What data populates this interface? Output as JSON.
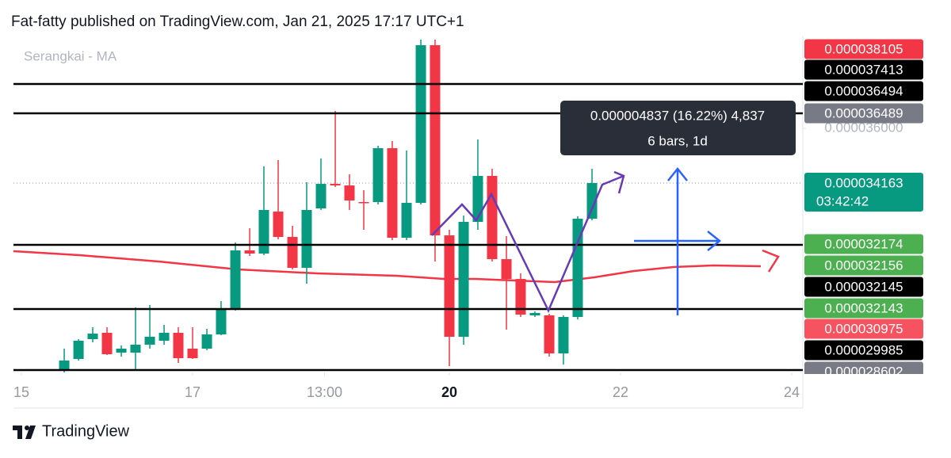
{
  "header": "Fat-fatty published on TradingView.com, Jan 21, 2025 17:17 UTC+1",
  "footer": "TradingView",
  "chart_data": {
    "type": "candlestick",
    "legend": "Serangkai - MA",
    "up_color": "#089981",
    "down_color": "#f23645",
    "x": [
      15.5,
      15.667,
      15.833,
      16,
      16.167,
      16.333,
      16.5,
      16.667,
      16.833,
      17,
      17.167,
      17.333,
      17.5,
      17.667,
      17.833,
      18,
      18.167,
      18.333,
      18.5,
      18.667,
      18.833,
      19,
      19.167,
      19.333,
      19.5,
      19.667,
      19.833,
      20,
      20.167,
      20.333,
      20.5,
      20.667,
      20.833,
      21,
      21.167,
      21.333,
      21.5,
      21.667
    ],
    "open": [
      2.7859e-05,
      2.8258e-05,
      2.8923e-05,
      2.9136e-05,
      2.8471e-05,
      2.8471e-05,
      2.8737e-05,
      2.887e-05,
      2.9136e-05,
      2.8604e-05,
      2.8604e-05,
      2.9082e-05,
      2.9934e-05,
      3.1902e-05,
      3.1796e-05,
      3.3205e-05,
      3.2354e-05,
      3.1317e-05,
      3.3312e-05,
      3.4136e-05,
      3.4083e-05,
      3.3525e-05,
      3.3525e-05,
      3.5333e-05,
      3.2328e-05,
      3.3498e-05,
      3.8791e-05,
      3.2407e-05,
      2.9003e-05,
      3.286e-05,
      3.4402e-05,
      3.1609e-05,
      3.0944e-05,
      2.9721e-05,
      2.9721e-05,
      2.8444e-05,
      2.9668e-05,
      3.2966e-05
    ],
    "high": [
      2.8604e-05,
      2.8923e-05,
      2.9322e-05,
      2.9322e-05,
      2.871e-05,
      2.9987e-05,
      3.0067e-05,
      2.9402e-05,
      2.9322e-05,
      2.9322e-05,
      2.9269e-05,
      3.02e-05,
      3.2168e-05,
      3.2647e-05,
      3.4722e-05,
      3.4934e-05,
      3.2727e-05,
      3.419e-05,
      3.4988e-05,
      3.6584e-05,
      3.4456e-05,
      3.3924e-05,
      3.5413e-05,
      3.5573e-05,
      3.5254e-05,
      3.8978e-05,
      3.8978e-05,
      3.2594e-05,
      3.3072e-05,
      3.5626e-05,
      3.4642e-05,
      3.2381e-05,
      3.1131e-05,
      2.9854e-05,
      2.9774e-05,
      2.9721e-05,
      3.3046e-05,
      3.4642e-05
    ],
    "low": [
      2.7806e-05,
      2.8205e-05,
      2.8816e-05,
      2.8391e-05,
      2.8338e-05,
      2.7859e-05,
      2.8604e-05,
      2.8737e-05,
      2.8125e-05,
      2.8258e-05,
      2.855e-05,
      2.9056e-05,
      2.988e-05,
      3.1716e-05,
      3.1742e-05,
      3.2274e-05,
      3.1264e-05,
      3.0785e-05,
      3.3259e-05,
      3.403e-05,
      3.3259e-05,
      3.2594e-05,
      3.3445e-05,
      3.2248e-05,
      3.2248e-05,
      3.3445e-05,
      3.153e-05,
      2.8018e-05,
      2.8737e-05,
      3.2594e-05,
      3.153e-05,
      2.9242e-05,
      2.9668e-05,
      2.9668e-05,
      2.8338e-05,
      2.8072e-05,
      2.9588e-05,
      3.2913e-05
    ],
    "close": [
      2.8205e-05,
      2.887e-05,
      2.9109e-05,
      2.8417e-05,
      2.8604e-05,
      2.8737e-05,
      2.9003e-05,
      2.9136e-05,
      2.8284e-05,
      2.8284e-05,
      2.9082e-05,
      2.9934e-05,
      3.1902e-05,
      3.1796e-05,
      3.3259e-05,
      3.2354e-05,
      3.1317e-05,
      3.3259e-05,
      3.4136e-05,
      3.4083e-05,
      3.3578e-05,
      3.3498e-05,
      3.5333e-05,
      3.2328e-05,
      3.3498e-05,
      3.8791e-05,
      3.2407e-05,
      2.9003e-05,
      3.286e-05,
      3.4402e-05,
      3.1609e-05,
      3.0944e-05,
      2.9747e-05,
      2.9801e-05,
      2.8444e-05,
      2.9668e-05,
      3.2966e-05,
      3.4163e-05
    ],
    "ma": {
      "color": "#f23645",
      "x": [
        14.907,
        15.676,
        16.602,
        17.528,
        18.454,
        19.38,
        19.935,
        20.306,
        20.769,
        21.231,
        21.694,
        22.157,
        22.62,
        23.083,
        23.639
      ],
      "values": [
        3.1875e-05,
        3.1742e-05,
        3.153e-05,
        3.1264e-05,
        3.1131e-05,
        3.1051e-05,
        3.0944e-05,
        3.0944e-05,
        3.0891e-05,
        3.0838e-05,
        3.0998e-05,
        3.121e-05,
        3.1343e-05,
        3.1397e-05,
        3.137e-05
      ]
    },
    "hlines": [
      3.7488e-05,
      3.6504e-05,
      3.2088e-05,
      2.9934e-05,
      2.7886e-05
    ],
    "last_price": 3.4163e-05,
    "xlim": [
      14.907,
      24.13
    ],
    "xticks": [
      15,
      17,
      {
        "value": 18.542,
        "label": "13:00"
      },
      20,
      22,
      24
    ],
    "ylim": [
      2.7806e-05,
      3.9111e-05
    ],
    "yticks": [
      {
        "value": 3.6e-05,
        "label": "0.000036000"
      }
    ],
    "price_labels": [
      {
        "label": "0.000038105",
        "color": "#f23645"
      },
      {
        "label": "0.000037413",
        "color": "#000000"
      },
      {
        "label": "0.000036494",
        "color": "#000000"
      },
      {
        "label": "0.000036489",
        "color": "#787b86"
      },
      {
        "label": "0.000034163",
        "sub": "03:42:42",
        "color": "#089981"
      },
      {
        "label": "0.000032174",
        "color": "#4caf50"
      },
      {
        "label": "0.000032156",
        "color": "#4caf50"
      },
      {
        "label": "0.000032145",
        "color": "#000000"
      },
      {
        "label": "0.000032143",
        "color": "#4caf50"
      },
      {
        "label": "0.000030975",
        "color": "#f7525f"
      },
      {
        "label": "0.000029985",
        "color": "#000000"
      },
      {
        "label": "0.000028602",
        "color": "#787b86"
      }
    ],
    "tooltip": {
      "line1": "0.000004837 (16.22%) 4,837",
      "line2": "6 bars, 1d"
    }
  }
}
